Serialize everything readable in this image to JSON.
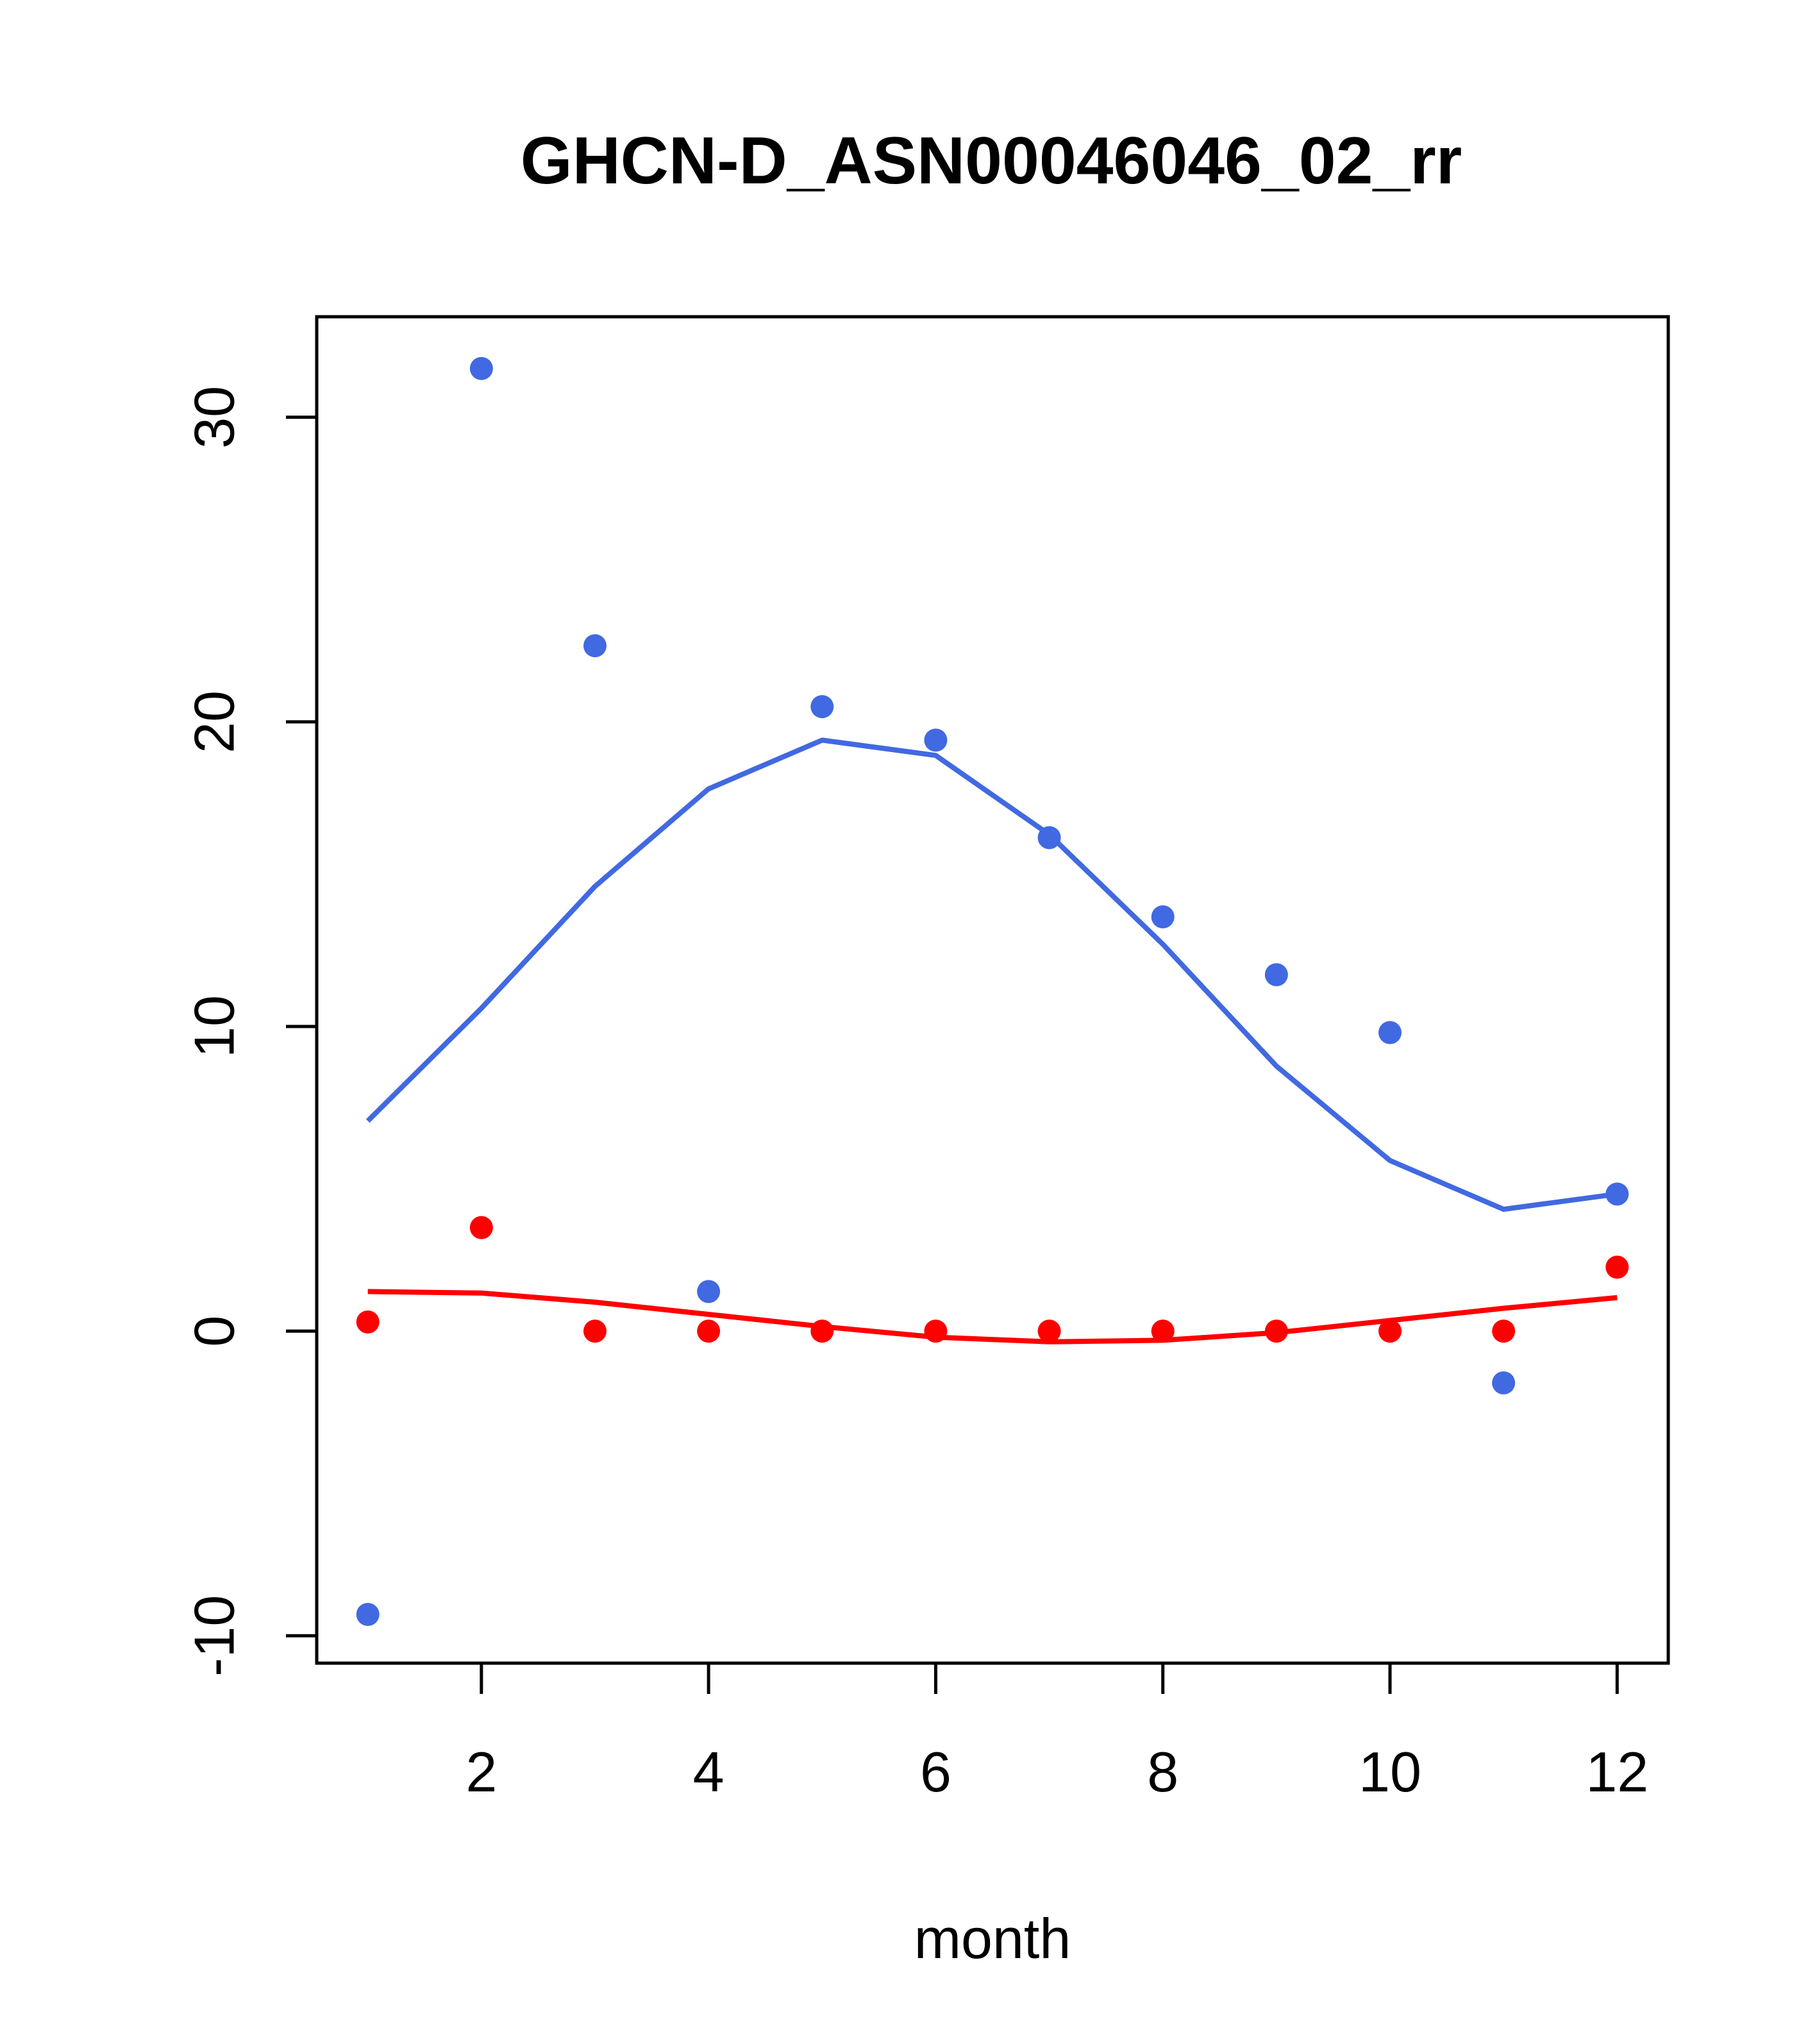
{
  "chart_data": {
    "type": "scatter",
    "title": "GHCN-D_ASN00046046_02_rr",
    "xlabel": "month",
    "ylabel": "",
    "xlim": [
      0.55,
      12.45
    ],
    "ylim": [
      -10.9,
      33.3
    ],
    "x_ticks": [
      2,
      4,
      6,
      8,
      10,
      12
    ],
    "y_ticks": [
      -10,
      0,
      10,
      20,
      30
    ],
    "x_tick_labels": [
      "2",
      "4",
      "6",
      "8",
      "10",
      "12"
    ],
    "y_tick_labels": [
      "-10",
      "0",
      "10",
      "20",
      "30"
    ],
    "grid": false,
    "legend": "none",
    "series": [
      {
        "color": "#4169E1",
        "x": [
          1,
          2,
          3,
          4,
          5,
          6,
          7,
          8,
          9,
          10,
          11,
          12
        ],
        "points": [
          -9.3,
          31.6,
          22.5,
          1.3,
          20.5,
          19.4,
          16.2,
          13.6,
          11.7,
          9.8,
          -1.7,
          4.5
        ],
        "line": [
          6.9,
          10.6,
          14.6,
          17.8,
          19.4,
          18.9,
          16.3,
          12.7,
          8.7,
          5.6,
          4.0,
          4.5
        ]
      },
      {
        "color": "#FF0000",
        "x": [
          1,
          2,
          3,
          4,
          5,
          6,
          7,
          8,
          9,
          10,
          11,
          12
        ],
        "points": [
          0.3,
          3.4,
          0.0,
          0.0,
          0.0,
          0.0,
          0.0,
          0.0,
          0.0,
          0.0,
          0.0,
          2.1
        ],
        "line": [
          1.3,
          1.25,
          0.95,
          0.55,
          0.15,
          -0.2,
          -0.35,
          -0.3,
          -0.05,
          0.35,
          0.75,
          1.1
        ]
      }
    ]
  }
}
